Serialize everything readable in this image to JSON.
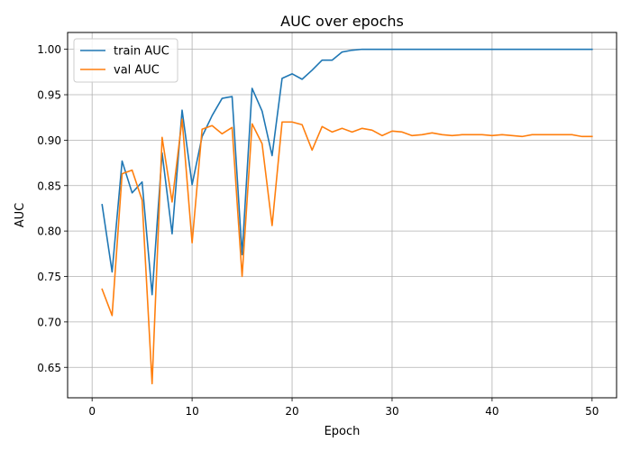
{
  "chart_data": {
    "type": "line",
    "title": "AUC over epochs",
    "xlabel": "Epoch",
    "ylabel": "AUC",
    "xlim": [
      -2.45,
      52.45
    ],
    "ylim": [
      0.6165,
      1.0185
    ],
    "xticks": [
      0,
      10,
      20,
      30,
      40,
      50
    ],
    "xtick_labels": [
      "0",
      "10",
      "20",
      "30",
      "40",
      "50"
    ],
    "yticks": [
      0.65,
      0.7,
      0.75,
      0.8,
      0.85,
      0.9,
      0.95,
      1.0
    ],
    "ytick_labels": [
      "0.65",
      "0.70",
      "0.75",
      "0.80",
      "0.85",
      "0.90",
      "0.95",
      "1.00"
    ],
    "grid": true,
    "legend_position": "top-left",
    "x": [
      1,
      2,
      3,
      4,
      5,
      6,
      7,
      8,
      9,
      10,
      11,
      12,
      13,
      14,
      15,
      16,
      17,
      18,
      19,
      20,
      21,
      22,
      23,
      24,
      25,
      26,
      27,
      28,
      29,
      30,
      31,
      32,
      33,
      34,
      35,
      36,
      37,
      38,
      39,
      40,
      41,
      42,
      43,
      44,
      45,
      46,
      47,
      48,
      49,
      50
    ],
    "series": [
      {
        "name": "train AUC",
        "color": "#1f77b4",
        "values": [
          0.829,
          0.755,
          0.877,
          0.842,
          0.854,
          0.73,
          0.886,
          0.797,
          0.933,
          0.851,
          0.904,
          0.927,
          0.946,
          0.948,
          0.774,
          0.957,
          0.932,
          0.883,
          0.968,
          0.973,
          0.967,
          0.977,
          0.988,
          0.988,
          0.997,
          0.999,
          1.0,
          1.0,
          1.0,
          1.0,
          1.0,
          1.0,
          1.0,
          1.0,
          1.0,
          1.0,
          1.0,
          1.0,
          1.0,
          1.0,
          1.0,
          1.0,
          1.0,
          1.0,
          1.0,
          1.0,
          1.0,
          1.0,
          1.0,
          1.0
        ]
      },
      {
        "name": "val AUC",
        "color": "#ff7f0e",
        "values": [
          0.736,
          0.707,
          0.863,
          0.867,
          0.834,
          0.632,
          0.903,
          0.832,
          0.923,
          0.787,
          0.912,
          0.916,
          0.907,
          0.914,
          0.75,
          0.918,
          0.896,
          0.806,
          0.92,
          0.92,
          0.917,
          0.889,
          0.915,
          0.909,
          0.913,
          0.909,
          0.913,
          0.911,
          0.905,
          0.91,
          0.909,
          0.905,
          0.906,
          0.908,
          0.906,
          0.905,
          0.906,
          0.906,
          0.906,
          0.905,
          0.906,
          0.905,
          0.904,
          0.906,
          0.906,
          0.906,
          0.906,
          0.906,
          0.904,
          0.904
        ]
      }
    ]
  }
}
